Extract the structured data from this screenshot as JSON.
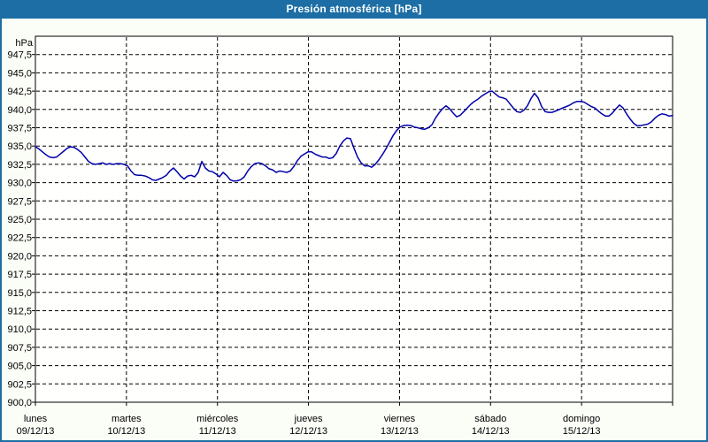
{
  "window": {
    "title": "Presión atmosférica [hPa]"
  },
  "colors": {
    "titlebar_bg": "#1c6ea4",
    "titlebar_text": "#ffffff",
    "window_border": "#1c6ea4",
    "background": "#fbfdf7",
    "plot_background": "#fffffe",
    "grid": "#000000",
    "axis": "#000000",
    "label_text": "#000000",
    "line": "#0000aa"
  },
  "chart_data": {
    "type": "line",
    "title": "Presión atmosférica [hPa]",
    "ylabel": "hPa",
    "unit_label": "hPa",
    "decimal_separator": ",",
    "ylim": [
      900,
      950
    ],
    "y_tick_values": [
      947.5,
      945.0,
      942.5,
      940.0,
      937.5,
      935.0,
      932.5,
      930.0,
      927.5,
      925.0,
      922.5,
      920.0,
      917.5,
      915.0,
      912.5,
      910.0,
      907.5,
      905.0,
      902.5,
      900.0
    ],
    "grid": "dashed",
    "legend_position": "none",
    "x_span_days": 7,
    "x_categories": [
      {
        "day": "lunes",
        "date": "09/12/13"
      },
      {
        "day": "martes",
        "date": "10/12/13"
      },
      {
        "day": "miércoles",
        "date": "11/12/13"
      },
      {
        "day": "jueves",
        "date": "12/12/13"
      },
      {
        "day": "viernes",
        "date": "13/12/13"
      },
      {
        "day": "sábado",
        "date": "14/12/13"
      },
      {
        "day": "domingo",
        "date": "15/12/13"
      }
    ],
    "series": [
      {
        "name": "Presión atmosférica",
        "color": "#0000aa",
        "x_start_day": 0,
        "x_step_day": 0.0388889,
        "values": [
          934.9,
          934.6,
          934.2,
          933.8,
          933.5,
          933.4,
          933.5,
          933.9,
          934.3,
          934.7,
          934.9,
          934.8,
          934.5,
          934.1,
          933.5,
          932.9,
          932.6,
          932.5,
          932.6,
          932.7,
          932.5,
          932.6,
          932.5,
          932.6,
          932.6,
          932.5,
          932.3,
          931.6,
          931.1,
          931.0,
          931.0,
          930.9,
          930.7,
          930.4,
          930.3,
          930.5,
          930.7,
          931.0,
          931.6,
          932.0,
          931.5,
          930.9,
          930.5,
          930.9,
          931.0,
          930.8,
          931.4,
          932.9,
          932.0,
          931.6,
          931.5,
          931.2,
          930.8,
          931.4,
          931.0,
          930.4,
          930.2,
          930.25,
          930.4,
          930.8,
          931.6,
          932.2,
          932.6,
          932.7,
          932.6,
          932.3,
          931.9,
          931.75,
          931.4,
          931.6,
          931.5,
          931.4,
          931.6,
          932.2,
          933.0,
          933.6,
          933.9,
          934.2,
          934.2,
          933.9,
          933.7,
          933.5,
          933.5,
          933.3,
          933.4,
          934.0,
          935.0,
          935.7,
          936.1,
          936.0,
          934.7,
          933.5,
          932.7,
          932.3,
          932.3,
          932.1,
          932.5,
          933.1,
          933.8,
          934.6,
          935.5,
          936.4,
          937.1,
          937.6,
          937.8,
          937.85,
          937.8,
          937.6,
          937.5,
          937.35,
          937.3,
          937.5,
          937.9,
          938.8,
          939.5,
          940.1,
          940.5,
          940.1,
          939.5,
          939.0,
          939.2,
          939.7,
          940.2,
          940.7,
          941.1,
          941.4,
          941.8,
          942.1,
          942.4,
          942.5,
          942.1,
          941.7,
          941.6,
          941.4,
          940.8,
          940.2,
          939.7,
          939.6,
          939.9,
          940.5,
          941.5,
          942.2,
          941.6,
          940.4,
          939.7,
          939.6,
          939.6,
          939.8,
          940.0,
          940.2,
          940.4,
          940.6,
          940.9,
          941.1,
          941.1,
          941.0,
          940.7,
          940.4,
          940.2,
          939.8,
          939.4,
          939.1,
          939.1,
          939.5,
          940.1,
          940.6,
          940.2,
          939.4,
          938.7,
          938.1,
          937.75,
          937.8,
          937.9,
          938.0,
          938.3,
          938.8,
          939.2,
          939.4,
          939.3,
          939.1,
          939.15
        ]
      }
    ]
  }
}
